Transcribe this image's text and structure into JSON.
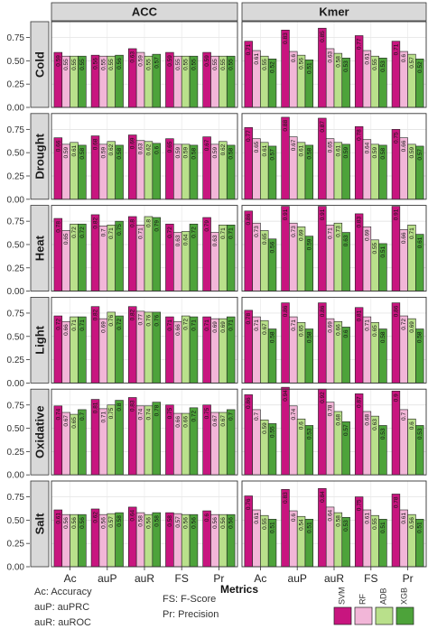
{
  "chart_data": {
    "type": "bar",
    "xlabel": "Metrics",
    "categories": [
      "Ac",
      "auP",
      "auR",
      "FS",
      "Pr"
    ],
    "columns": [
      "ACC",
      "Kmer"
    ],
    "rows": [
      "Cold",
      "Drought",
      "Heat",
      "Light",
      "Oxidative",
      "Salt"
    ],
    "ylim": [
      0,
      1
    ],
    "yticks": [
      "0.00",
      "0.25",
      "0.50",
      "0.75"
    ],
    "grid": true,
    "legend_placement": "bottom-right",
    "series_names": [
      "SVM",
      "RF",
      "ADB",
      "XGB"
    ],
    "series_colors": [
      "#c8157f",
      "#f2b6d8",
      "#b9e08b",
      "#4da33a"
    ],
    "panels": [
      {
        "row": "Cold",
        "column": "ACC",
        "values": [
          [
            0.59,
            0.55,
            0.55,
            0.55
          ],
          [
            0.56,
            0.55,
            0.55,
            0.56
          ],
          [
            0.63,
            0.59,
            0.55,
            0.57
          ],
          [
            0.59,
            0.55,
            0.55,
            0.55
          ],
          [
            0.59,
            0.55,
            0.55,
            0.55
          ]
        ]
      },
      {
        "row": "Cold",
        "column": "Kmer",
        "values": [
          [
            0.71,
            0.61,
            0.55,
            0.52
          ],
          [
            0.83,
            0.6,
            0.56,
            0.51
          ],
          [
            0.85,
            0.63,
            0.58,
            0.53
          ],
          [
            0.77,
            0.61,
            0.55,
            0.53
          ],
          [
            0.71,
            0.6,
            0.57,
            0.52
          ]
        ]
      },
      {
        "row": "Drought",
        "column": "ACC",
        "values": [
          [
            0.66,
            0.59,
            0.61,
            0.58
          ],
          [
            0.68,
            0.59,
            0.62,
            0.58
          ],
          [
            0.69,
            0.63,
            0.62,
            0.6
          ],
          [
            0.65,
            0.59,
            0.59,
            0.58
          ],
          [
            0.67,
            0.59,
            0.62,
            0.58
          ]
        ]
      },
      {
        "row": "Drought",
        "column": "Kmer",
        "values": [
          [
            0.77,
            0.65,
            0.61,
            0.57
          ],
          [
            0.88,
            0.67,
            0.61,
            0.58
          ],
          [
            0.87,
            0.65,
            0.61,
            0.59
          ],
          [
            0.78,
            0.64,
            0.59,
            0.58
          ],
          [
            0.75,
            0.66,
            0.59,
            0.57
          ]
        ]
      },
      {
        "row": "Heat",
        "column": "ACC",
        "values": [
          [
            0.78,
            0.65,
            0.72,
            0.72
          ],
          [
            0.82,
            0.7,
            0.71,
            0.75
          ],
          [
            0.8,
            0.71,
            0.8,
            0.79
          ],
          [
            0.72,
            0.63,
            0.64,
            0.72
          ],
          [
            0.79,
            0.63,
            0.71,
            0.71
          ]
        ]
      },
      {
        "row": "Heat",
        "column": "Kmer",
        "values": [
          [
            0.86,
            0.73,
            0.65,
            0.56
          ],
          [
            0.91,
            0.73,
            0.69,
            0.59
          ],
          [
            0.91,
            0.71,
            0.73,
            0.63
          ],
          [
            0.83,
            0.69,
            0.55,
            0.51
          ],
          [
            0.91,
            0.66,
            0.71,
            0.61
          ]
        ]
      },
      {
        "row": "Light",
        "column": "ACC",
        "values": [
          [
            0.72,
            0.66,
            0.71,
            0.71
          ],
          [
            0.82,
            0.69,
            0.76,
            0.72
          ],
          [
            0.82,
            0.77,
            0.76,
            0.76
          ],
          [
            0.71,
            0.66,
            0.72,
            0.71
          ],
          [
            0.71,
            0.69,
            0.69,
            0.71
          ]
        ]
      },
      {
        "row": "Light",
        "column": "Kmer",
        "values": [
          [
            0.78,
            0.71,
            0.67,
            0.58
          ],
          [
            0.86,
            0.71,
            0.65,
            0.58
          ],
          [
            0.86,
            0.69,
            0.66,
            0.6
          ],
          [
            0.81,
            0.71,
            0.65,
            0.58
          ],
          [
            0.86,
            0.72,
            0.69,
            0.58
          ]
        ]
      },
      {
        "row": "Oxidative",
        "column": "ACC",
        "values": [
          [
            0.74,
            0.67,
            0.65,
            0.7
          ],
          [
            0.81,
            0.71,
            0.75,
            0.8
          ],
          [
            0.83,
            0.74,
            0.74,
            0.78
          ],
          [
            0.75,
            0.66,
            0.66,
            0.72
          ],
          [
            0.75,
            0.67,
            0.67,
            0.7
          ]
        ]
      },
      {
        "row": "Oxidative",
        "column": "Kmer",
        "values": [
          [
            0.86,
            0.7,
            0.59,
            0.55
          ],
          [
            0.94,
            0.74,
            0.6,
            0.53
          ],
          [
            0.92,
            0.78,
            0.68,
            0.57
          ],
          [
            0.87,
            0.68,
            0.63,
            0.53
          ],
          [
            0.9,
            0.7,
            0.6,
            0.53
          ]
        ]
      },
      {
        "row": "Salt",
        "column": "ACC",
        "values": [
          [
            0.61,
            0.56,
            0.56,
            0.56
          ],
          [
            0.62,
            0.56,
            0.57,
            0.58
          ],
          [
            0.64,
            0.58,
            0.56,
            0.58
          ],
          [
            0.58,
            0.57,
            0.56,
            0.56
          ],
          [
            0.6,
            0.56,
            0.56,
            0.56
          ]
        ]
      },
      {
        "row": "Salt",
        "column": "Kmer",
        "values": [
          [
            0.76,
            0.61,
            0.55,
            0.51
          ],
          [
            0.83,
            0.6,
            0.54,
            0.51
          ],
          [
            0.84,
            0.64,
            0.58,
            0.53
          ],
          [
            0.75,
            0.61,
            0.55,
            0.51
          ],
          [
            0.78,
            0.61,
            0.56,
            0.51
          ]
        ]
      }
    ]
  },
  "footnotes": {
    "ac": "Ac: Accuracy",
    "aup": "auP: auPRC",
    "aur": "auR: auROC",
    "fs": "FS: F-Score",
    "pr": "Pr: Precision"
  }
}
